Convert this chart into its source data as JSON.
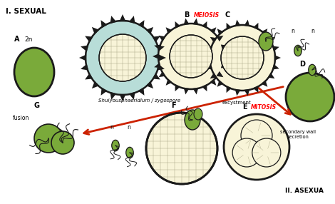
{
  "bg_color": "#ffffff",
  "green_fill": "#7aaa3a",
  "cell_fill": "#f8f4d8",
  "light_blue": "#b8ddd8",
  "dark_stroke": "#1a1a1a",
  "red_arrow": "#cc2200",
  "title": "I. SEXUAL",
  "title2": "II. ASEXUA",
  "label_shuiy": "Shuiyousphaeridium / zygospore",
  "label_excystment": "excystment",
  "label_fusion": "fusion",
  "label_secondary": "secondary wall\nsecretion",
  "label_meiosis": "MEIOSIS",
  "label_mitosis": "MITOSIS"
}
